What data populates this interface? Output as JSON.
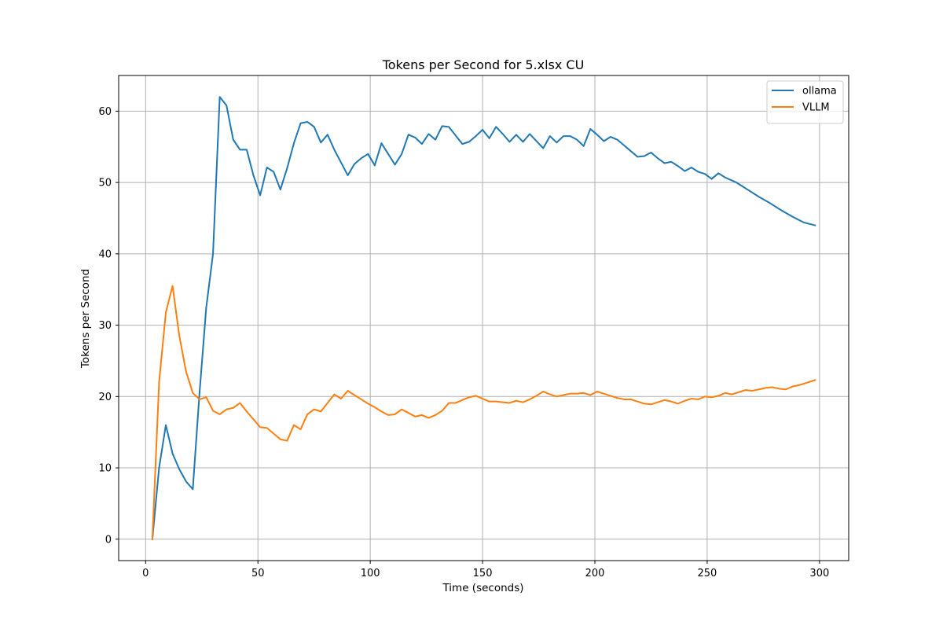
{
  "chart_data": {
    "type": "line",
    "title": "Tokens per Second for 5.xlsx CU",
    "xlabel": "Time (seconds)",
    "ylabel": "Tokens per Second",
    "xlim": [
      -12,
      313
    ],
    "ylim": [
      -3,
      65
    ],
    "xticks": [
      0,
      50,
      100,
      150,
      200,
      250,
      300
    ],
    "yticks": [
      0,
      10,
      20,
      30,
      40,
      50,
      60
    ],
    "grid": true,
    "legend_position": "top-right",
    "series": [
      {
        "name": "ollama",
        "color": "#1f77b4",
        "points": [
          [
            3,
            0
          ],
          [
            6,
            10
          ],
          [
            9,
            16
          ],
          [
            12,
            12
          ],
          [
            15,
            9.8
          ],
          [
            18,
            8.1
          ],
          [
            21,
            7
          ],
          [
            24,
            20.5
          ],
          [
            27,
            32.5
          ],
          [
            30,
            40
          ],
          [
            33,
            62
          ],
          [
            36,
            60.8
          ],
          [
            39,
            56
          ],
          [
            42,
            54.6
          ],
          [
            45,
            54.6
          ],
          [
            48,
            51
          ],
          [
            51,
            48.2
          ],
          [
            54,
            52.1
          ],
          [
            57,
            51.5
          ],
          [
            60,
            49
          ],
          [
            63,
            52
          ],
          [
            66,
            55.5
          ],
          [
            69,
            58.3
          ],
          [
            72,
            58.5
          ],
          [
            75,
            57.8
          ],
          [
            78,
            55.6
          ],
          [
            81,
            56.7
          ],
          [
            84,
            54.6
          ],
          [
            87,
            52.8
          ],
          [
            90,
            51
          ],
          [
            93,
            52.6
          ],
          [
            96,
            53.4
          ],
          [
            99,
            54
          ],
          [
            102,
            52.4
          ],
          [
            105,
            55.5
          ],
          [
            108,
            54
          ],
          [
            111,
            52.5
          ],
          [
            114,
            54
          ],
          [
            117,
            56.7
          ],
          [
            120,
            56.3
          ],
          [
            123,
            55.4
          ],
          [
            126,
            56.8
          ],
          [
            129,
            56
          ],
          [
            132,
            57.9
          ],
          [
            135,
            57.8
          ],
          [
            138,
            56.6
          ],
          [
            141,
            55.4
          ],
          [
            144,
            55.7
          ],
          [
            147,
            56.5
          ],
          [
            150,
            57.4
          ],
          [
            153,
            56.2
          ],
          [
            156,
            57.8
          ],
          [
            159,
            56.8
          ],
          [
            162,
            55.7
          ],
          [
            165,
            56.7
          ],
          [
            168,
            55.7
          ],
          [
            171,
            56.8
          ],
          [
            174,
            55.8
          ],
          [
            177,
            54.8
          ],
          [
            180,
            56.5
          ],
          [
            183,
            55.6
          ],
          [
            186,
            56.5
          ],
          [
            189,
            56.5
          ],
          [
            192,
            56
          ],
          [
            195,
            55.1
          ],
          [
            198,
            57.5
          ],
          [
            201,
            56.7
          ],
          [
            204,
            55.8
          ],
          [
            207,
            56.4
          ],
          [
            210,
            56
          ],
          [
            213,
            55.2
          ],
          [
            216,
            54.4
          ],
          [
            219,
            53.6
          ],
          [
            222,
            53.7
          ],
          [
            225,
            54.2
          ],
          [
            228,
            53.4
          ],
          [
            231,
            52.7
          ],
          [
            234,
            52.9
          ],
          [
            237,
            52.3
          ],
          [
            240,
            51.6
          ],
          [
            243,
            52.1
          ],
          [
            246,
            51.5
          ],
          [
            249,
            51.2
          ],
          [
            252,
            50.5
          ],
          [
            255,
            51.3
          ],
          [
            258,
            50.7
          ],
          [
            263,
            50
          ],
          [
            268,
            49
          ],
          [
            273,
            48
          ],
          [
            278,
            47.1
          ],
          [
            283,
            46.1
          ],
          [
            288,
            45.2
          ],
          [
            293,
            44.4
          ],
          [
            298,
            44
          ]
        ]
      },
      {
        "name": "VLLM",
        "color": "#ff7f0e",
        "points": [
          [
            3,
            0
          ],
          [
            6,
            22
          ],
          [
            9,
            31.8
          ],
          [
            12,
            35.5
          ],
          [
            15,
            28.5
          ],
          [
            18,
            23.5
          ],
          [
            21,
            20.5
          ],
          [
            24,
            19.6
          ],
          [
            27,
            19.9
          ],
          [
            30,
            18
          ],
          [
            33,
            17.5
          ],
          [
            36,
            18.2
          ],
          [
            39,
            18.4
          ],
          [
            42,
            19.1
          ],
          [
            45,
            17.9
          ],
          [
            48,
            16.8
          ],
          [
            51,
            15.7
          ],
          [
            54,
            15.6
          ],
          [
            57,
            14.8
          ],
          [
            60,
            14
          ],
          [
            63,
            13.8
          ],
          [
            66,
            16
          ],
          [
            69,
            15.4
          ],
          [
            72,
            17.5
          ],
          [
            75,
            18.2
          ],
          [
            78,
            17.9
          ],
          [
            81,
            19.1
          ],
          [
            84,
            20.3
          ],
          [
            87,
            19.7
          ],
          [
            90,
            20.8
          ],
          [
            93,
            20.2
          ],
          [
            96,
            19.6
          ],
          [
            99,
            19
          ],
          [
            102,
            18.5
          ],
          [
            105,
            17.9
          ],
          [
            108,
            17.4
          ],
          [
            111,
            17.5
          ],
          [
            114,
            18.2
          ],
          [
            117,
            17.7
          ],
          [
            120,
            17.2
          ],
          [
            123,
            17.4
          ],
          [
            126,
            17
          ],
          [
            129,
            17.4
          ],
          [
            132,
            18
          ],
          [
            135,
            19.1
          ],
          [
            138,
            19.1
          ],
          [
            141,
            19.5
          ],
          [
            144,
            19.9
          ],
          [
            147,
            20.1
          ],
          [
            150,
            19.7
          ],
          [
            153,
            19.3
          ],
          [
            156,
            19.3
          ],
          [
            159,
            19.2
          ],
          [
            162,
            19.1
          ],
          [
            165,
            19.4
          ],
          [
            168,
            19.2
          ],
          [
            171,
            19.6
          ],
          [
            174,
            20.1
          ],
          [
            177,
            20.7
          ],
          [
            180,
            20.3
          ],
          [
            183,
            20
          ],
          [
            186,
            20.2
          ],
          [
            189,
            20.4
          ],
          [
            192,
            20.4
          ],
          [
            195,
            20.5
          ],
          [
            198,
            20.2
          ],
          [
            201,
            20.7
          ],
          [
            204,
            20.4
          ],
          [
            207,
            20.1
          ],
          [
            210,
            19.8
          ],
          [
            213,
            19.6
          ],
          [
            216,
            19.6
          ],
          [
            219,
            19.3
          ],
          [
            222,
            19
          ],
          [
            225,
            18.9
          ],
          [
            228,
            19.2
          ],
          [
            231,
            19.5
          ],
          [
            234,
            19.3
          ],
          [
            237,
            19
          ],
          [
            240,
            19.4
          ],
          [
            243,
            19.7
          ],
          [
            246,
            19.6
          ],
          [
            249,
            20
          ],
          [
            252,
            19.9
          ],
          [
            255,
            20.1
          ],
          [
            258,
            20.5
          ],
          [
            261,
            20.3
          ],
          [
            264,
            20.6
          ],
          [
            267,
            20.9
          ],
          [
            270,
            20.8
          ],
          [
            273,
            21
          ],
          [
            276,
            21.2
          ],
          [
            279,
            21.3
          ],
          [
            282,
            21.1
          ],
          [
            285,
            21
          ],
          [
            288,
            21.4
          ],
          [
            291,
            21.6
          ],
          [
            294,
            21.9
          ],
          [
            298,
            22.3
          ]
        ]
      }
    ]
  }
}
